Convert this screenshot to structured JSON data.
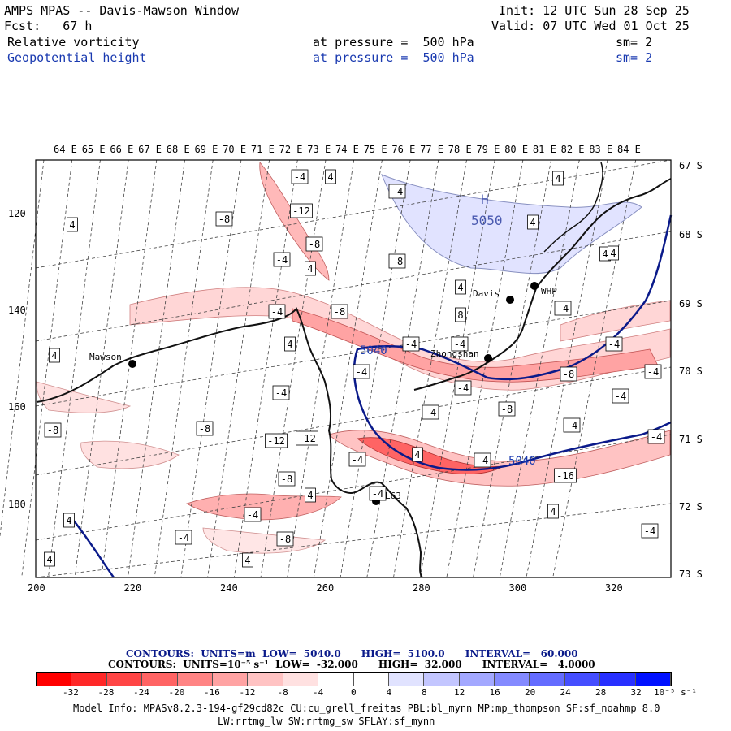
{
  "header": {
    "title": "AMPS MPAS -- Davis-Mawson Window",
    "init": "Init: 12 UTC Sun 28 Sep 25",
    "fcst": "Fcst:   67 h",
    "valid": "Valid: 07 UTC Wed 01 Oct 25",
    "field1_name": "Relative vorticity",
    "field1_level": "at pressure =  500 hPa",
    "field1_sm": "sm= 2",
    "field2_name": "Geopotential height",
    "field2_level": "at pressure =  500 hPa",
    "field2_sm": "sm= 2"
  },
  "map": {
    "top_lon_labels": [
      "64 E",
      "65 E",
      "66 E",
      "67 E",
      "68 E",
      "69 E",
      "70 E",
      "71 E",
      "72 E",
      "73 E",
      "74 E",
      "75 E",
      "76 E",
      "77 E",
      "78 E",
      "79 E",
      "80 E",
      "81 E",
      "82 E",
      "83 E",
      "84 E"
    ],
    "right_lat_labels": [
      "67 S",
      "68 S",
      "69 S",
      "70 S",
      "71 S",
      "72 S",
      "73 S"
    ],
    "left_y_labels": [
      "120",
      "140",
      "160",
      "180"
    ],
    "bottom_x_labels": [
      "200",
      "220",
      "240",
      "260",
      "280",
      "300",
      "320"
    ],
    "stations": [
      {
        "name": "Mawson"
      },
      {
        "name": "Davis"
      },
      {
        "name": "WHP"
      },
      {
        "name": "Zhongshan"
      },
      {
        "name": "L63"
      }
    ],
    "high_marker": {
      "letter": "H",
      "value": "5050"
    },
    "height_labels": [
      "5040",
      "5040"
    ],
    "vort_labels": [
      "-4",
      "4",
      "4",
      "-4",
      "4",
      "4",
      "-12",
      "-8",
      "4",
      "-8",
      "-4",
      "4",
      "4",
      "-8",
      "8",
      "-4",
      "-8",
      "-4",
      "4",
      "4",
      "-4",
      "-4",
      "-4",
      "-4",
      "-4",
      "-8",
      "-4",
      "-4",
      "-8",
      "-4",
      "-4",
      "-8",
      "-12",
      "-12",
      "-8",
      "-4",
      "4",
      "-4",
      "-16",
      "-8",
      "-4",
      "4",
      "-4",
      "-4",
      "-8",
      "-4",
      "4",
      "4",
      "4",
      "-4",
      "-4",
      "4",
      "4"
    ]
  },
  "legend": {
    "contours1": "CONTOURS:  UNITS=m  LOW=  5040.0      HIGH=  5100.0      INTERVAL=   60.000",
    "contours2": "CONTOURS:  UNITS=10⁻⁵ s⁻¹  LOW=  -32.000      HIGH=  32.000      INTERVAL=   4.0000",
    "ticks": [
      "-32",
      "-28",
      "-24",
      "-20",
      "-16",
      "-12",
      "-8",
      "-4",
      "0",
      "4",
      "8",
      "12",
      "16",
      "20",
      "24",
      "28",
      "32",
      "10⁻⁵ s⁻¹"
    ],
    "colors": [
      "#ff0000",
      "#ff2828",
      "#ff4545",
      "#ff6464",
      "#ff8484",
      "#ffa3a3",
      "#ffc3c3",
      "#ffe1e1",
      "#ffffff",
      "#ffffff",
      "#e1e3ff",
      "#c3c6ff",
      "#a3a8ff",
      "#848aff",
      "#646cff",
      "#454eff",
      "#2830ff",
      "#0010ff"
    ]
  },
  "footer": {
    "line1": "Model Info: MPASv8.2.3-194-gf29cd82c CU:cu_grell_freitas PBL:bl_mynn MP:mp_thompson SF:sf_noahmp 8.0",
    "line2": "LW:rrtmg_lw SW:rrtmg_sw SFLAY:sf_mynn"
  }
}
